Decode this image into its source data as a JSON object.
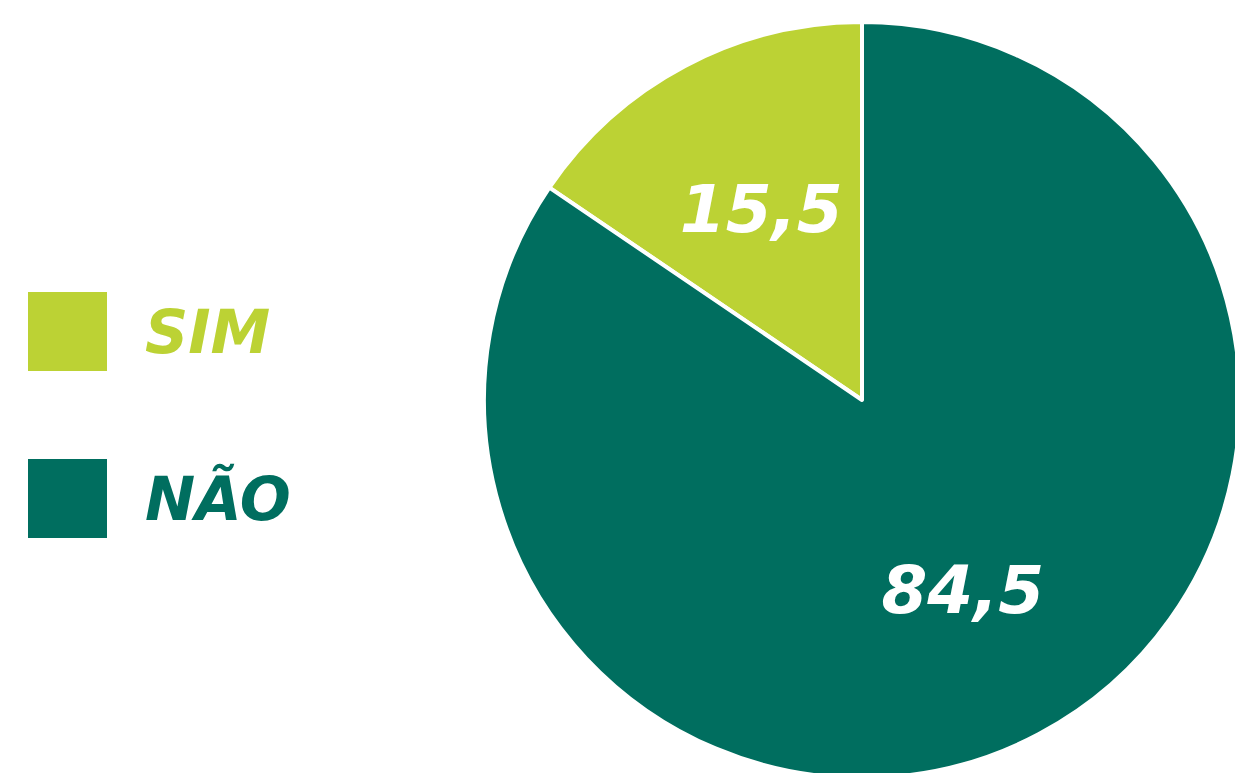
{
  "chart_data": {
    "type": "pie",
    "categories": [
      "SIM",
      "NÃO"
    ],
    "values": [
      15.5,
      84.5
    ],
    "colors": [
      "#bcd234",
      "#006e5f"
    ],
    "value_labels": [
      "15,5",
      "84,5"
    ],
    "legend": "left"
  }
}
